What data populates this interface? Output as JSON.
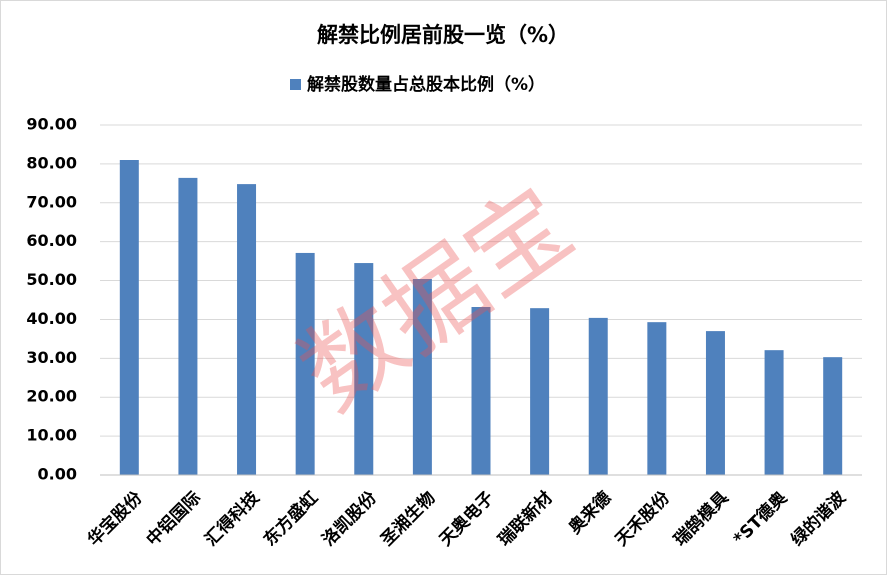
{
  "chart_data": {
    "type": "bar",
    "title": "解禁比例居前股一览（%）",
    "watermark": "数据宝",
    "categories": [
      "华宝股份",
      "中铝国际",
      "汇得科技",
      "东方盛虹",
      "洛凯股份",
      "圣湘生物",
      "天奥电子",
      "瑞联新材",
      "奥来德",
      "天禾股份",
      "瑞鹄模具",
      "*ST德奥",
      "绿的谐波"
    ],
    "series": [
      {
        "name": "解禁股数量占总股本比例（%）",
        "color": "#4f81bd",
        "values": [
          81.0,
          76.4,
          74.8,
          57.1,
          54.5,
          50.4,
          43.2,
          42.9,
          40.4,
          39.3,
          37.0,
          32.1,
          30.3
        ]
      }
    ],
    "ylim": [
      0,
      90
    ],
    "yticks": [
      {
        "value": 0,
        "label": "0.00"
      },
      {
        "value": 10,
        "label": "10.00"
      },
      {
        "value": 20,
        "label": "20.00"
      },
      {
        "value": 30,
        "label": "30.00"
      },
      {
        "value": 40,
        "label": "40.00"
      },
      {
        "value": 50,
        "label": "50.00"
      },
      {
        "value": 60,
        "label": "60.00"
      },
      {
        "value": 70,
        "label": "70.00"
      },
      {
        "value": 80,
        "label": "80.00"
      },
      {
        "value": 90,
        "label": "90.00"
      }
    ],
    "grid": true,
    "legend": "top"
  }
}
